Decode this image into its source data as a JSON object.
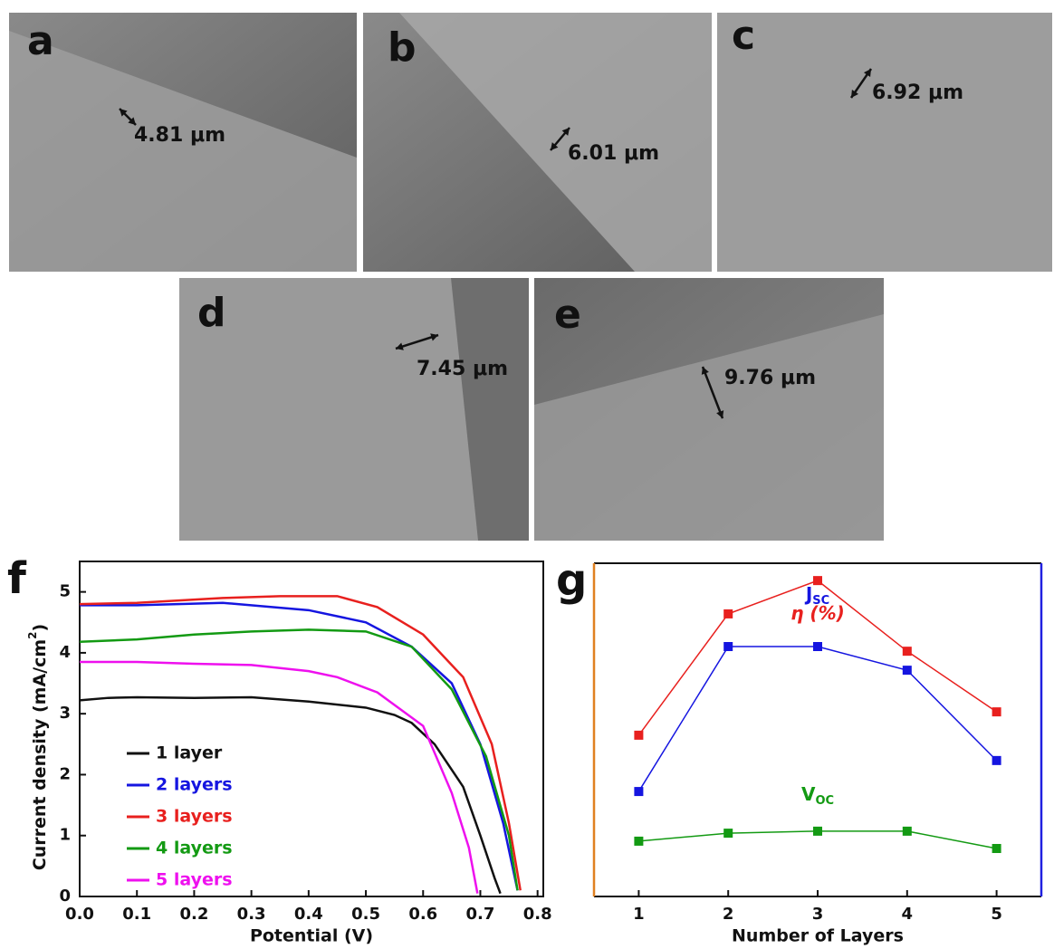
{
  "panels": [
    {
      "label": "a",
      "thickness": "4.81 μm"
    },
    {
      "label": "b",
      "thickness": "6.01 μm"
    },
    {
      "label": "c",
      "thickness": "6.92 μm"
    },
    {
      "label": "d",
      "thickness": "7.45 μm"
    },
    {
      "label": "e",
      "thickness": "9.76 μm"
    }
  ],
  "chart_data": [
    {
      "type": "line",
      "panel_label": "f",
      "xlabel": "Potential (V)",
      "ylabel": "Current density (mA/cm",
      "ylabel_sup": "2",
      "ylabel_end": ")",
      "xlim": [
        0,
        0.81
      ],
      "ylim": [
        0,
        5.5
      ],
      "xticks": [
        {
          "value": 0,
          "label": "0.0"
        },
        0.1,
        0.2,
        0.3,
        0.4,
        0.5,
        0.6,
        0.7,
        0.8
      ],
      "yticks": [
        0,
        1,
        2,
        3,
        4,
        5
      ],
      "legend": "lower-left",
      "series": [
        {
          "name": "1 layer",
          "color": "#111111",
          "x": [
            0,
            0.05,
            0.1,
            0.2,
            0.3,
            0.4,
            0.5,
            0.55,
            0.58,
            0.62,
            0.67,
            0.7,
            0.725,
            0.735
          ],
          "values": [
            3.22,
            3.26,
            3.27,
            3.26,
            3.27,
            3.2,
            3.1,
            2.98,
            2.85,
            2.5,
            1.8,
            1.0,
            0.3,
            0.05
          ]
        },
        {
          "name": "2 layers",
          "color": "#1515e0",
          "x": [
            0,
            0.1,
            0.25,
            0.4,
            0.5,
            0.58,
            0.65,
            0.7,
            0.74,
            0.765
          ],
          "values": [
            4.78,
            4.78,
            4.82,
            4.7,
            4.5,
            4.1,
            3.5,
            2.5,
            1.2,
            0.1
          ]
        },
        {
          "name": "3 layers",
          "color": "#e8201e",
          "x": [
            0,
            0.1,
            0.25,
            0.35,
            0.45,
            0.52,
            0.6,
            0.67,
            0.72,
            0.75,
            0.77
          ],
          "values": [
            4.8,
            4.82,
            4.9,
            4.93,
            4.93,
            4.75,
            4.3,
            3.6,
            2.5,
            1.2,
            0.1
          ]
        },
        {
          "name": "4 layers",
          "color": "#139a13",
          "x": [
            0,
            0.1,
            0.2,
            0.3,
            0.4,
            0.5,
            0.58,
            0.65,
            0.71,
            0.75,
            0.765
          ],
          "values": [
            4.18,
            4.22,
            4.3,
            4.35,
            4.38,
            4.35,
            4.1,
            3.4,
            2.3,
            1.0,
            0.1
          ]
        },
        {
          "name": "5 layers",
          "color": "#ee10ee",
          "x": [
            0,
            0.1,
            0.2,
            0.3,
            0.4,
            0.45,
            0.52,
            0.6,
            0.65,
            0.68,
            0.695
          ],
          "values": [
            3.85,
            3.85,
            3.82,
            3.8,
            3.7,
            3.6,
            3.35,
            2.8,
            1.7,
            0.8,
            0.05
          ]
        }
      ]
    },
    {
      "type": "line",
      "panel_label": "g",
      "xlabel": "Number of Layers",
      "xlim": [
        0.5,
        5.5
      ],
      "ylim": [
        0,
        100
      ],
      "xticks": [
        1,
        2,
        3,
        4,
        5
      ],
      "left_axis_color": "#e08020",
      "right_axis_color": "#2020e0",
      "series": [
        {
          "name": "η (%)",
          "color": "#e8201e",
          "x": [
            1,
            2,
            3,
            4,
            5
          ],
          "values": [
            48.4,
            84.8,
            94.8,
            73.6,
            55.4
          ]
        },
        {
          "name": "J",
          "subscript": "SC",
          "color": "#1515e0",
          "x": [
            1,
            2,
            3,
            4,
            5
          ],
          "values": [
            31.5,
            75.0,
            75.0,
            67.9,
            40.8
          ]
        },
        {
          "name": "V",
          "subscript": "OC",
          "color": "#139a13",
          "x": [
            1,
            2,
            3,
            4,
            5
          ],
          "values": [
            16.6,
            19.0,
            19.6,
            19.6,
            14.4
          ]
        }
      ]
    }
  ]
}
